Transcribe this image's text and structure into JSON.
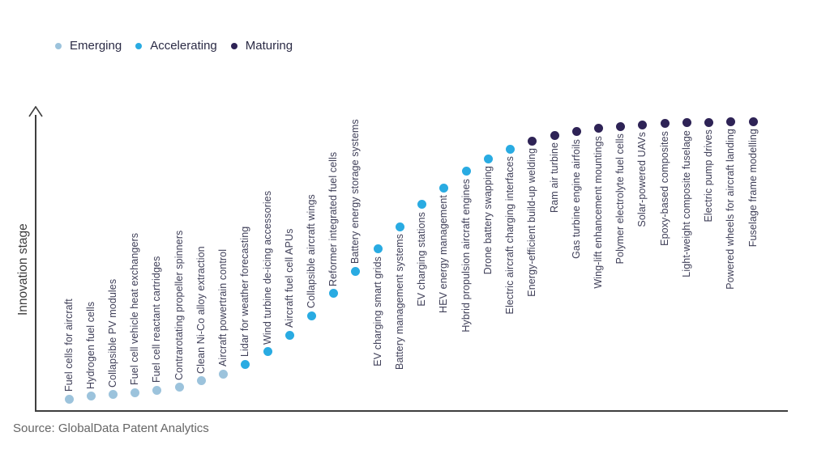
{
  "legend": {
    "items": [
      {
        "label": "Emerging",
        "color": "#9cc3dc"
      },
      {
        "label": "Accelerating",
        "color": "#29abe2"
      },
      {
        "label": "Maturing",
        "color": "#2e2356"
      }
    ]
  },
  "y_axis_label": "Innovation stage",
  "source_note": "Source: GlobalData Patent Analytics",
  "chart_data": {
    "type": "scatter",
    "title": "",
    "xlabel": "",
    "ylabel": "Innovation stage",
    "axis_ticks": "none",
    "grid": "off",
    "legend_position": "top-left",
    "legend_entries": [
      "Emerging",
      "Accelerating",
      "Maturing"
    ],
    "stage_colors": {
      "Emerging": "#9cc3dc",
      "Accelerating": "#29abe2",
      "Maturing": "#2e2356"
    },
    "level_meaning": "Innovation stage progression estimated from dot height, 0 = lowest plotted point, 100 = highest (axis is unscaled)",
    "points": [
      {
        "label": "Fuel cells for aircraft",
        "stage": "Emerging",
        "level": 0
      },
      {
        "label": "Hydrogen fuel cells",
        "stage": "Emerging",
        "level": 1
      },
      {
        "label": "Collapsible PV modules",
        "stage": "Emerging",
        "level": 1.5
      },
      {
        "label": "Fuel cell vehicle heat exchangers",
        "stage": "Emerging",
        "level": 2.2
      },
      {
        "label": "Fuel cell reactant cartridges",
        "stage": "Emerging",
        "level": 3.2
      },
      {
        "label": "Contrarotating propeller spinners",
        "stage": "Emerging",
        "level": 4.2
      },
      {
        "label": "Clean Ni-Co alloy extraction",
        "stage": "Emerging",
        "level": 6.5
      },
      {
        "label": "Aircraft powertrain control",
        "stage": "Emerging",
        "level": 9
      },
      {
        "label": "Lidar for weather forecasting",
        "stage": "Accelerating",
        "level": 12.5
      },
      {
        "label": "Wind turbine de-icing accessories",
        "stage": "Accelerating",
        "level": 17
      },
      {
        "label": "Aircraft fuel cell APUs",
        "stage": "Accelerating",
        "level": 23
      },
      {
        "label": "Collapsible aircraft wings",
        "stage": "Accelerating",
        "level": 30
      },
      {
        "label": "Reformer integrated fuel cells",
        "stage": "Accelerating",
        "level": 38
      },
      {
        "label": "Battery energy storage systems",
        "stage": "Accelerating",
        "level": 46
      },
      {
        "label": "EV charging smart grids",
        "stage": "Accelerating",
        "level": 54
      },
      {
        "label": "Battery management systems",
        "stage": "Accelerating",
        "level": 62
      },
      {
        "label": "EV charging stations",
        "stage": "Accelerating",
        "level": 70
      },
      {
        "label": "HEV energy management",
        "stage": "Accelerating",
        "level": 76
      },
      {
        "label": "Hybrid propulsion aircraft engines",
        "stage": "Accelerating",
        "level": 82
      },
      {
        "label": "Drone battery swapping",
        "stage": "Accelerating",
        "level": 86.5
      },
      {
        "label": "Electric aircraft charging interfaces",
        "stage": "Accelerating",
        "level": 90
      },
      {
        "label": "Energy-efficient build-up welding",
        "stage": "Maturing",
        "level": 93
      },
      {
        "label": "Ram air turbine",
        "stage": "Maturing",
        "level": 95
      },
      {
        "label": "Gas turbine engine airfoils",
        "stage": "Maturing",
        "level": 96.3
      },
      {
        "label": "Wing-lift enhancement mountings",
        "stage": "Maturing",
        "level": 97.4
      },
      {
        "label": "Polymer electrolyte fuel cells",
        "stage": "Maturing",
        "level": 98.2
      },
      {
        "label": "Solar-powered UAVs",
        "stage": "Maturing",
        "level": 98.8
      },
      {
        "label": "Epoxy-based composites",
        "stage": "Maturing",
        "level": 99.2
      },
      {
        "label": "Light-weight composite fuselage",
        "stage": "Maturing",
        "level": 99.5
      },
      {
        "label": "Electric pump drives",
        "stage": "Maturing",
        "level": 99.7
      },
      {
        "label": "Powered wheels for aircraft landing",
        "stage": "Maturing",
        "level": 99.9
      },
      {
        "label": "Fuselage frame modelling",
        "stage": "Maturing",
        "level": 100
      }
    ]
  }
}
